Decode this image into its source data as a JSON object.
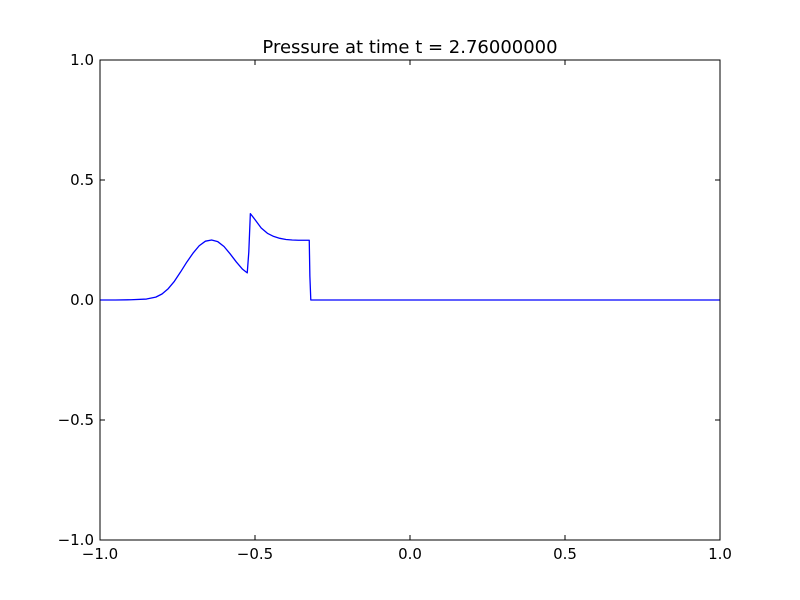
{
  "chart_data": {
    "type": "line",
    "title": "Pressure at time t =      2.76000000",
    "xlabel": "",
    "ylabel": "",
    "xlim": [
      -1.0,
      1.0
    ],
    "ylim": [
      -1.0,
      1.0
    ],
    "xticks": [
      -1.0,
      -0.5,
      0.0,
      0.5,
      1.0
    ],
    "xtick_labels": [
      "−1.0",
      "−0.5",
      "0.0",
      "0.5",
      "1.0"
    ],
    "yticks": [
      -1.0,
      -0.5,
      0.0,
      0.5,
      1.0
    ],
    "ytick_labels": [
      "−1.0",
      "−0.5",
      "0.0",
      "0.5",
      "1.0"
    ],
    "grid": false,
    "legend": "none",
    "series": [
      {
        "color": "#0000ff",
        "x": [
          -1.0,
          -0.95,
          -0.9,
          -0.85,
          -0.82,
          -0.8,
          -0.78,
          -0.76,
          -0.74,
          -0.72,
          -0.7,
          -0.68,
          -0.66,
          -0.64,
          -0.62,
          -0.6,
          -0.58,
          -0.56,
          -0.54,
          -0.525,
          -0.52,
          -0.515,
          -0.5,
          -0.48,
          -0.46,
          -0.44,
          -0.42,
          -0.4,
          -0.38,
          -0.36,
          -0.34,
          -0.325,
          -0.323,
          -0.32,
          -0.3,
          0.0,
          0.5,
          1.0
        ],
        "y": [
          0.0,
          0.0,
          0.001,
          0.004,
          0.012,
          0.025,
          0.047,
          0.078,
          0.117,
          0.158,
          0.195,
          0.226,
          0.245,
          0.25,
          0.243,
          0.223,
          0.192,
          0.158,
          0.128,
          0.113,
          0.2,
          0.36,
          0.335,
          0.3,
          0.278,
          0.265,
          0.257,
          0.252,
          0.25,
          0.249,
          0.249,
          0.249,
          0.1,
          0.0,
          0.0,
          0.0,
          0.0,
          0.0
        ]
      }
    ]
  }
}
